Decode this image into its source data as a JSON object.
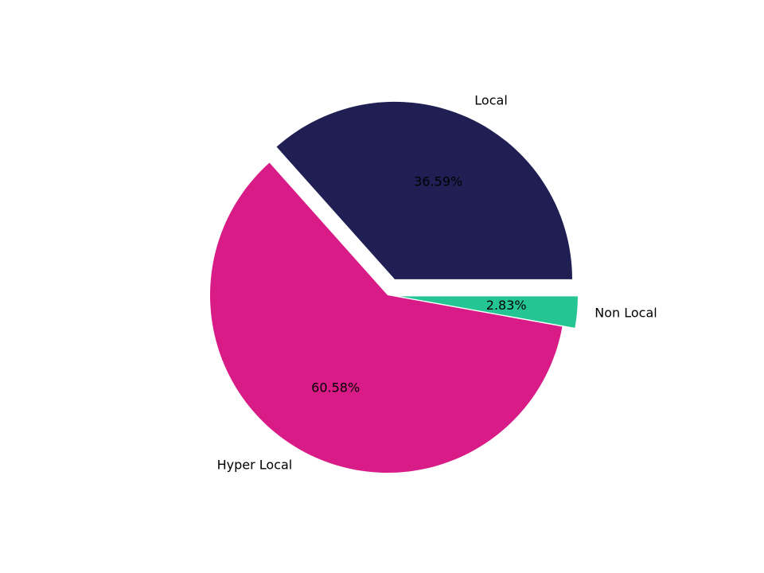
{
  "chart_data": {
    "type": "pie",
    "categories": [
      "Local",
      "Hyper Local",
      "Non Local"
    ],
    "values": [
      36.59,
      60.58,
      2.83
    ],
    "value_labels": [
      "36.59%",
      "60.58%",
      "2.83%"
    ],
    "colors": [
      "#1f1f54",
      "#d81b86",
      "#24c493"
    ]
  }
}
